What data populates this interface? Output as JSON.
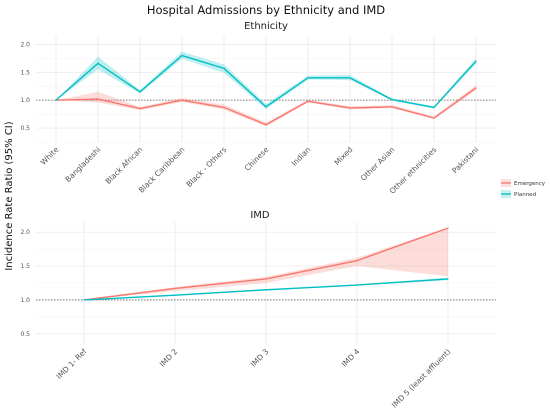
{
  "title": "Hospital Admissions by Ethnicity and IMD",
  "ylabel": "Incidence Rate Ratio (95% CI)",
  "legend": {
    "items": [
      {
        "label": "Emergency",
        "color": "#f8766d"
      },
      {
        "label": "Planned",
        "color": "#00bfc4"
      }
    ]
  },
  "chart_data": [
    {
      "type": "line",
      "title": "Ethnicity",
      "categories": [
        "White",
        "Bangladeshi",
        "Black African",
        "Black Caribbean",
        "Black - Others",
        "Chinese",
        "Indian",
        "Mixed",
        "Other Asian",
        "Other ethnicities",
        "Pakistani"
      ],
      "ylim": [
        0.25,
        2.15
      ],
      "yticks": [
        0.5,
        1.0,
        1.5,
        2.0
      ],
      "reference_line": 1.0,
      "grid": true,
      "series": [
        {
          "name": "Emergency",
          "color": "#f8766d",
          "values": [
            1.0,
            1.02,
            0.85,
            1.0,
            0.87,
            0.56,
            0.98,
            0.86,
            0.88,
            0.68,
            1.22
          ],
          "lower": [
            1.0,
            0.96,
            0.82,
            0.97,
            0.83,
            0.53,
            0.96,
            0.83,
            0.86,
            0.66,
            1.18
          ],
          "upper": [
            1.0,
            1.15,
            0.88,
            1.04,
            0.92,
            0.6,
            1.01,
            0.89,
            0.91,
            0.71,
            1.27
          ]
        },
        {
          "name": "Planned",
          "color": "#00bfc4",
          "values": [
            1.0,
            1.66,
            1.15,
            1.8,
            1.57,
            0.88,
            1.4,
            1.4,
            1.01,
            0.87,
            1.7
          ],
          "lower": [
            1.0,
            1.55,
            1.12,
            1.74,
            1.49,
            0.84,
            1.37,
            1.36,
            0.99,
            0.85,
            1.65
          ],
          "upper": [
            1.0,
            1.78,
            1.18,
            1.87,
            1.64,
            0.93,
            1.44,
            1.45,
            1.03,
            0.89,
            1.75
          ]
        }
      ]
    },
    {
      "type": "line",
      "title": "IMD",
      "categories": [
        "IMD 1- Ref",
        "IMD 2",
        "IMD 3",
        "IMD 4",
        "IMD 5 (least affluent)"
      ],
      "ylim": [
        0.35,
        2.15
      ],
      "yticks": [
        0.5,
        1.0,
        1.5,
        2.0
      ],
      "reference_line": 1.0,
      "grid": true,
      "series": [
        {
          "name": "Emergency",
          "color": "#f8766d",
          "values": [
            1.0,
            1.17,
            1.31,
            1.58,
            2.06
          ],
          "lower": [
            1.0,
            1.13,
            1.25,
            1.5,
            1.35
          ],
          "upper": [
            1.0,
            1.19,
            1.34,
            1.62,
            2.07
          ]
        },
        {
          "name": "Planned",
          "color": "#00bfc4",
          "values": [
            1.0,
            1.07,
            1.15,
            1.22,
            1.31
          ],
          "lower": [
            1.0,
            1.06,
            1.14,
            1.21,
            1.29
          ],
          "upper": [
            1.0,
            1.08,
            1.16,
            1.23,
            1.33
          ]
        }
      ]
    }
  ]
}
